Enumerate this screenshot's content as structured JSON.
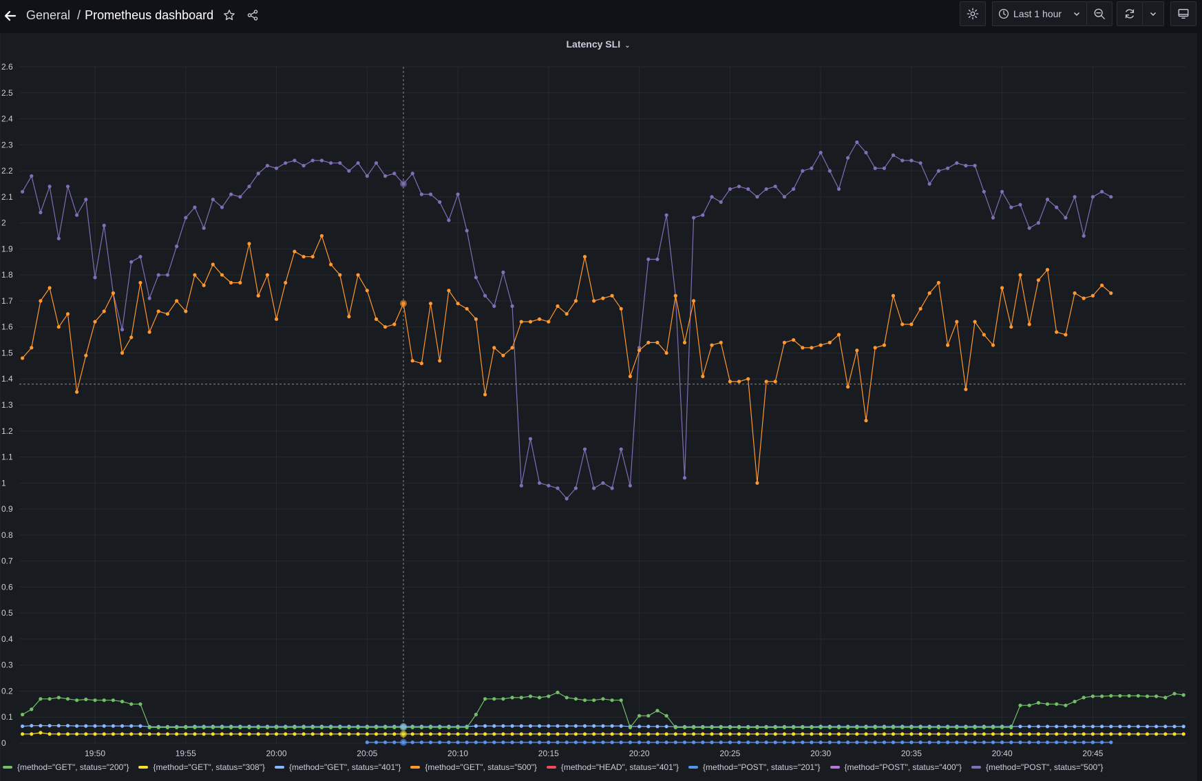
{
  "header": {
    "folder": "General",
    "separator": "/",
    "title": "Prometheus dashboard",
    "time_range": "Last 1 hour",
    "icons": {
      "back": "arrow-left-icon",
      "star": "star-icon",
      "share": "share-icon",
      "settings": "gear-icon",
      "clock": "clock-icon",
      "zoom_out": "zoom-out-icon",
      "refresh": "refresh-icon",
      "refresh_dropdown": "chevron-down-icon",
      "tv": "monitor-icon"
    }
  },
  "panel": {
    "title": "Latency SLI"
  },
  "chart_data": {
    "type": "line",
    "title": "Latency SLI",
    "xlabel": "",
    "ylabel": "",
    "ylim": [
      0,
      2.6
    ],
    "yticks": [
      "0",
      "0.1",
      "0.2",
      "0.3",
      "0.4",
      "0.5",
      "0.6",
      "0.7",
      "0.8",
      "0.9",
      "1",
      "1.1",
      "1.2",
      "1.3",
      "1.4",
      "1.5",
      "1.6",
      "1.7",
      "1.8",
      "1.9",
      "2",
      "2.1",
      "2.2",
      "2.3",
      "2.4",
      "2.5",
      "2.6"
    ],
    "xticks": [
      "19:50",
      "19:55",
      "20:00",
      "20:05",
      "20:10",
      "20:15",
      "20:20",
      "20:25",
      "20:30",
      "20:35",
      "20:40",
      "20:45"
    ],
    "x_start": "19:46",
    "x_step_seconds": 30,
    "grid": true,
    "legend_position": "bottom",
    "hover": {
      "time": "20:07",
      "y_value": 1.38
    },
    "series": [
      {
        "name": "{method=\"GET\", status=\"200\"}",
        "color": "#73bf69",
        "values": [
          0.11,
          0.13,
          0.17,
          0.17,
          0.175,
          0.17,
          0.165,
          0.168,
          0.165,
          0.165,
          0.165,
          0.16,
          0.15,
          0.15,
          0.06,
          0.06,
          0.06,
          0.06,
          0.06,
          0.06,
          0.06,
          0.06,
          0.06,
          0.06,
          0.06,
          0.06,
          0.06,
          0.06,
          0.06,
          0.06,
          0.06,
          0.06,
          0.06,
          0.06,
          0.06,
          0.06,
          0.06,
          0.06,
          0.06,
          0.06,
          0.06,
          0.06,
          0.06,
          0.06,
          0.06,
          0.06,
          0.06,
          0.06,
          0.06,
          0.06,
          0.11,
          0.17,
          0.17,
          0.17,
          0.175,
          0.175,
          0.18,
          0.175,
          0.18,
          0.195,
          0.175,
          0.17,
          0.165,
          0.165,
          0.17,
          0.165,
          0.165,
          0.06,
          0.105,
          0.105,
          0.125,
          0.105,
          0.06,
          0.06,
          0.06,
          0.06,
          0.06,
          0.06,
          0.06,
          0.06,
          0.06,
          0.06,
          0.06,
          0.06,
          0.06,
          0.06,
          0.06,
          0.06,
          0.06,
          0.06,
          0.06,
          0.06,
          0.06,
          0.06,
          0.06,
          0.06,
          0.06,
          0.06,
          0.06,
          0.06,
          0.06,
          0.06,
          0.06,
          0.06,
          0.06,
          0.06,
          0.06,
          0.06,
          0.06,
          0.06,
          0.145,
          0.145,
          0.155,
          0.15,
          0.15,
          0.145,
          0.16,
          0.175,
          0.18,
          0.18,
          0.182,
          0.182,
          0.182,
          0.182,
          0.18,
          0.18,
          0.175,
          0.19,
          0.185,
          0.185,
          0.185,
          0.175,
          0.175,
          0.17,
          0.17,
          0.175,
          0.175,
          0.175,
          0.17,
          0.17,
          0.175,
          0.175,
          0.175,
          0.175,
          0.13,
          0.125,
          0.13,
          0.13,
          0.06,
          0.06,
          0.06,
          0.06,
          0.06,
          0.06,
          0.06,
          0.06,
          0.06,
          0.06,
          0.06,
          0.06,
          0.06,
          0.06,
          0.06,
          0.06,
          0.06,
          0.06,
          0.06,
          0.06,
          0.06,
          0.06,
          0.06,
          0.06,
          0.06,
          0.06,
          0.06,
          0.06,
          0.06,
          0.06,
          0.06,
          0.06,
          0.06,
          0.06,
          0.06,
          0.06,
          0.06,
          0.06,
          0.06,
          0.06
        ]
      },
      {
        "name": "{method=\"GET\", status=\"308\"}",
        "color": "#fade2a",
        "values": [
          0.035,
          0.035,
          0.04,
          0.035,
          0.035,
          0.035,
          0.035,
          0.035,
          0.035,
          0.035,
          0.035,
          0.035,
          0.035,
          0.035,
          0.035,
          0.035,
          0.035,
          0.035,
          0.035,
          0.035,
          0.035,
          0.035,
          0.035,
          0.035,
          0.035,
          0.035,
          0.035,
          0.035,
          0.035,
          0.035,
          0.035,
          0.035,
          0.035,
          0.035,
          0.035,
          0.035,
          0.035,
          0.035,
          0.035,
          0.035,
          0.035,
          0.035,
          0.035,
          0.035,
          0.035,
          0.035,
          0.035,
          0.035,
          0.035,
          0.035,
          0.035,
          0.035,
          0.035,
          0.035,
          0.035,
          0.035,
          0.035,
          0.035,
          0.035,
          0.035,
          0.035,
          0.035,
          0.035,
          0.035,
          0.035,
          0.035,
          0.035,
          0.035,
          0.035,
          0.035,
          0.035,
          0.035,
          0.035,
          0.035,
          0.035,
          0.035,
          0.035,
          0.035,
          0.035,
          0.035,
          0.035,
          0.035,
          0.035,
          0.035,
          0.035,
          0.035,
          0.035,
          0.035,
          0.035,
          0.035,
          0.035,
          0.035,
          0.035,
          0.035,
          0.035,
          0.035,
          0.035,
          0.035,
          0.035,
          0.035,
          0.035,
          0.035,
          0.035,
          0.035,
          0.035,
          0.035,
          0.035,
          0.035,
          0.035,
          0.035,
          0.035,
          0.035,
          0.035,
          0.035,
          0.035,
          0.035,
          0.035,
          0.035,
          0.035,
          0.035,
          0.035,
          0.035,
          0.035,
          0.035,
          0.035,
          0.035,
          0.035,
          0.035,
          0.035,
          0.035,
          0.035,
          0.035,
          0.035,
          0.035,
          0.035,
          0.035,
          0.035,
          0.035,
          0.035,
          0.035,
          0.035,
          0.035,
          0.035,
          0.035,
          0.035,
          0.035,
          0.035,
          0.035,
          0.035,
          0.035,
          0.035,
          0.035,
          0.035,
          0.035,
          0.035,
          0.035,
          0.035,
          0.035,
          0.035,
          0.035,
          0.035,
          0.035,
          0.035,
          0.035,
          0.035,
          0.035,
          0.035,
          0.035,
          0.035,
          0.035,
          0.035,
          0.035,
          0.035,
          0.035,
          0.035,
          0.035,
          0.035,
          0.035,
          0.035,
          0.035,
          0.035,
          0.035,
          0.035,
          0.035,
          0.035,
          0.035,
          0.035,
          0.035,
          0.035
        ]
      },
      {
        "name": "{method=\"GET\", status=\"401\"}",
        "color": "#8ab8ff",
        "values": [
          0.065,
          0.067,
          0.067,
          0.067,
          0.067,
          0.067,
          0.066,
          0.066,
          0.066,
          0.066,
          0.066,
          0.066,
          0.066,
          0.066,
          0.063,
          0.063,
          0.063,
          0.063,
          0.063,
          0.064,
          0.064,
          0.064,
          0.064,
          0.064,
          0.064,
          0.064,
          0.064,
          0.064,
          0.064,
          0.064,
          0.064,
          0.064,
          0.064,
          0.064,
          0.064,
          0.064,
          0.064,
          0.064,
          0.064,
          0.064,
          0.064,
          0.064,
          0.064,
          0.064,
          0.064,
          0.064,
          0.064,
          0.064,
          0.064,
          0.064,
          0.066,
          0.066,
          0.066,
          0.066,
          0.066,
          0.066,
          0.066,
          0.066,
          0.066,
          0.066,
          0.066,
          0.066,
          0.066,
          0.066,
          0.066,
          0.066,
          0.066,
          0.064,
          0.064,
          0.064,
          0.064,
          0.064,
          0.063,
          0.063,
          0.063,
          0.063,
          0.063,
          0.063,
          0.063,
          0.063,
          0.063,
          0.063,
          0.063,
          0.063,
          0.063,
          0.063,
          0.063,
          0.063,
          0.064,
          0.064,
          0.064,
          0.064,
          0.064,
          0.064,
          0.064,
          0.064,
          0.064,
          0.064,
          0.064,
          0.064,
          0.064,
          0.064,
          0.064,
          0.064,
          0.064,
          0.064,
          0.064,
          0.064,
          0.064,
          0.064,
          0.064,
          0.064,
          0.064,
          0.064,
          0.064,
          0.064,
          0.064,
          0.064,
          0.064,
          0.064,
          0.064,
          0.064,
          0.064,
          0.064,
          0.064,
          0.064,
          0.064,
          0.064,
          0.064,
          0.064,
          0.064,
          0.064,
          0.064,
          0.064,
          0.064,
          0.064,
          0.064,
          0.064,
          0.064,
          0.064,
          0.064,
          0.064,
          0.064,
          0.064,
          0.064,
          0.064,
          0.064,
          0.064,
          0.064,
          0.064,
          0.064,
          0.064,
          0.064,
          0.064,
          0.064,
          0.064,
          0.064,
          0.064,
          0.064,
          0.064,
          0.064,
          0.064,
          0.064,
          0.064,
          0.064,
          0.064,
          0.064,
          0.064,
          0.064,
          0.064,
          0.064,
          0.064,
          0.064,
          0.064,
          0.064,
          0.064,
          0.064,
          0.064,
          0.064,
          0.064,
          0.064,
          0.064,
          0.064,
          0.064,
          0.064,
          0.064,
          0.064,
          0.064
        ]
      },
      {
        "name": "{method=\"GET\", status=\"500\"}",
        "color": "#ff9830",
        "values": [
          1.48,
          1.52,
          1.7,
          1.75,
          1.6,
          1.65,
          1.35,
          1.49,
          1.62,
          1.66,
          1.73,
          1.5,
          1.56,
          1.77,
          1.58,
          1.66,
          1.65,
          1.7,
          1.66,
          1.8,
          1.76,
          1.84,
          1.8,
          1.77,
          1.77,
          1.92,
          1.72,
          1.8,
          1.63,
          1.77,
          1.89,
          1.87,
          1.87,
          1.95,
          1.84,
          1.8,
          1.64,
          1.8,
          1.74,
          1.63,
          1.6,
          1.61,
          1.69,
          1.47,
          1.46,
          1.69,
          1.47,
          1.74,
          1.69,
          1.67,
          1.63,
          1.34,
          1.52,
          1.49,
          1.52,
          1.62,
          1.62,
          1.63,
          1.62,
          1.68,
          1.65,
          1.7,
          1.87,
          1.7,
          1.71,
          1.72,
          1.67,
          1.41,
          1.51,
          1.54,
          1.54,
          1.5,
          1.72,
          1.54,
          1.7,
          1.41,
          1.53,
          1.54,
          1.39,
          1.39,
          1.4,
          1.0,
          1.39,
          1.39,
          1.54,
          1.55,
          1.52,
          1.52,
          1.53,
          1.54,
          1.57,
          1.37,
          1.51,
          1.24,
          1.52,
          1.53,
          1.72,
          1.61,
          1.61,
          1.67,
          1.73,
          1.77,
          1.53,
          1.62,
          1.36,
          1.62,
          1.57,
          1.53,
          1.75,
          1.6,
          1.8,
          1.61,
          1.78,
          1.82,
          1.58,
          1.57,
          1.73,
          1.71,
          1.72,
          1.76,
          1.73
        ]
      },
      {
        "name": "{method=\"HEAD\", status=\"401\"}",
        "color": "#f2495c",
        "values": []
      },
      {
        "name": "{method=\"POST\", status=\"201\"}",
        "color": "#5794f2",
        "values": [
          null,
          null,
          null,
          null,
          null,
          null,
          null,
          null,
          null,
          null,
          null,
          null,
          null,
          null,
          null,
          null,
          null,
          null,
          null,
          null,
          null,
          null,
          null,
          null,
          null,
          null,
          null,
          null,
          null,
          null,
          null,
          null,
          null,
          null,
          null,
          null,
          null,
          null,
          0.003,
          0.003,
          0.003,
          0.003,
          0.003,
          0.003,
          0.003,
          0.003,
          0.003,
          0.003,
          0.003,
          0.003,
          0.003,
          0.003,
          0.003,
          0.003,
          0.003,
          0.003,
          0.003,
          0.003,
          0.003,
          0.003,
          0.003,
          0.003,
          0.003,
          0.003,
          0.003,
          0.003,
          0.003,
          0.003,
          0.003,
          0.003,
          0.003,
          0.003,
          0.003,
          0.003,
          0.003,
          0.003,
          0.003,
          0.003,
          0.003,
          0.003,
          0.003,
          0.003,
          0.003,
          0.003,
          0.003,
          0.003,
          0.003,
          0.003,
          0.003,
          0.003,
          0.003,
          0.003,
          0.003,
          0.003,
          0.003,
          0.003,
          0.003,
          0.003,
          0.003,
          0.003,
          0.003,
          0.003,
          0.003,
          0.003,
          0.003,
          0.003,
          0.003,
          0.003,
          0.003,
          0.003,
          0.003,
          0.003,
          0.003,
          0.003,
          0.003,
          0.003,
          0.003,
          0.003,
          0.003,
          0.003,
          0.003
        ]
      },
      {
        "name": "{method=\"POST\", status=\"400\"}",
        "color": "#b877d9",
        "values": []
      },
      {
        "name": "{method=\"POST\", status=\"500\"}",
        "color": "#806eb7",
        "values": [
          2.12,
          2.18,
          2.04,
          2.14,
          1.94,
          2.14,
          2.03,
          2.09,
          1.79,
          1.99,
          1.73,
          1.59,
          1.85,
          1.87,
          1.71,
          1.8,
          1.8,
          1.91,
          2.02,
          2.06,
          1.98,
          2.09,
          2.06,
          2.11,
          2.1,
          2.14,
          2.19,
          2.22,
          2.21,
          2.23,
          2.24,
          2.22,
          2.24,
          2.24,
          2.23,
          2.23,
          2.2,
          2.23,
          2.18,
          2.23,
          2.18,
          2.19,
          2.15,
          2.19,
          2.11,
          2.11,
          2.08,
          2.01,
          2.11,
          1.97,
          1.79,
          1.72,
          1.68,
          1.81,
          1.68,
          0.99,
          1.17,
          1.0,
          0.99,
          0.98,
          0.94,
          0.98,
          1.13,
          0.98,
          1.0,
          0.98,
          1.13,
          0.99,
          1.52,
          1.86,
          1.86,
          2.03,
          1.72,
          1.02,
          2.02,
          2.03,
          2.1,
          2.08,
          2.13,
          2.14,
          2.13,
          2.1,
          2.13,
          2.14,
          2.1,
          2.13,
          2.2,
          2.21,
          2.27,
          2.2,
          2.13,
          2.25,
          2.31,
          2.27,
          2.21,
          2.21,
          2.26,
          2.24,
          2.24,
          2.23,
          2.15,
          2.2,
          2.21,
          2.23,
          2.22,
          2.22,
          2.12,
          2.02,
          2.12,
          2.06,
          2.07,
          1.98,
          2.0,
          2.09,
          2.06,
          2.02,
          2.1,
          1.95,
          2.1,
          2.12,
          2.1
        ]
      }
    ]
  }
}
